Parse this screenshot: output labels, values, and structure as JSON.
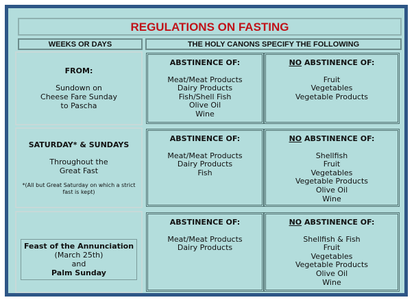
{
  "title": "REGULATIONS ON FASTING",
  "header": {
    "left": "WEEKS OR DAYS",
    "right": "THE HOLY CANONS SPECIFY THE FOLLOWING"
  },
  "rows": [
    {
      "heading": "FROM:",
      "lines": [
        "Sundown on",
        "Cheese Fare Sunday",
        "to Pascha"
      ],
      "abstinence": {
        "heading": "ABSTINENCE OF:",
        "items": [
          "Meat/Meat Products",
          "Dairy Products",
          "Fish/Shell Fish",
          "Olive Oil",
          "Wine"
        ]
      },
      "no_abstinence": {
        "emphasis": "NO",
        "heading": "ABSTINENCE OF:",
        "items": [
          "Fruit",
          "Vegetables",
          "Vegetable Products"
        ]
      }
    },
    {
      "heading": "SATURDAY* & SUNDAYS",
      "lines": [
        "Throughout the",
        "Great Fast"
      ],
      "note": "*(All but Great Saturday on which a strict fast is kept)",
      "abstinence": {
        "heading": "ABSTINENCE OF:",
        "items": [
          "Meat/Meat Products",
          "Dairy Products",
          "Fish"
        ]
      },
      "no_abstinence": {
        "emphasis": "NO",
        "heading": "ABSTINENCE OF:",
        "items": [
          "Shellfish",
          "Fruit",
          "Vegetables",
          "Vegetable Products",
          "Olive Oil",
          "Wine"
        ]
      }
    },
    {
      "heading": "Feast of the Annunciation",
      "lines": [
        "(March 25th)",
        "and"
      ],
      "closing": "Palm Sunday",
      "abstinence": {
        "heading": "ABSTINENCE OF:",
        "items": [
          "Meat/Meat Products",
          "Dairy Products"
        ]
      },
      "no_abstinence": {
        "emphasis": "NO",
        "heading": "ABSTINENCE OF:",
        "items": [
          "Shellfish & Fish",
          "Fruit",
          "Vegetables",
          "Vegetable Products",
          "Olive Oil",
          "Wine"
        ]
      }
    }
  ]
}
